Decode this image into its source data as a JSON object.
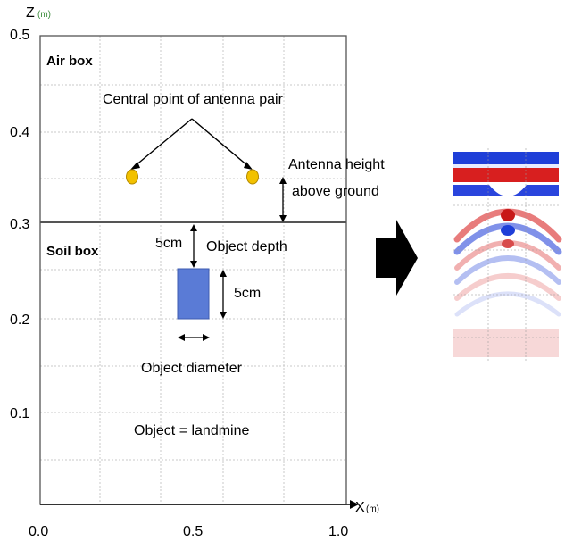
{
  "axes": {
    "z_label": "Z",
    "z_unit": "(m)",
    "x_label": "X",
    "x_unit": "(m)",
    "z_ticks": [
      "0.5",
      "0.4",
      "0.3",
      "0.2",
      "0.1"
    ],
    "x_ticks": [
      "0.0",
      "0.5",
      "1.0"
    ]
  },
  "labels": {
    "air_box": "Air box",
    "soil_box": "Soil box",
    "central_point": "Central point of antenna pair",
    "antenna_height_line1": "Antenna height",
    "antenna_height_line2": "above ground",
    "depth_value": "5cm",
    "object_depth": "Object depth",
    "object_size_value": "5cm",
    "object_diameter": "Object diameter",
    "object_type": "Object = landmine"
  },
  "colors": {
    "antenna": "#f2c100",
    "object": "#5a7bd6",
    "radargram_blue": "#1f3fd8",
    "radargram_red": "#d81f1f"
  }
}
